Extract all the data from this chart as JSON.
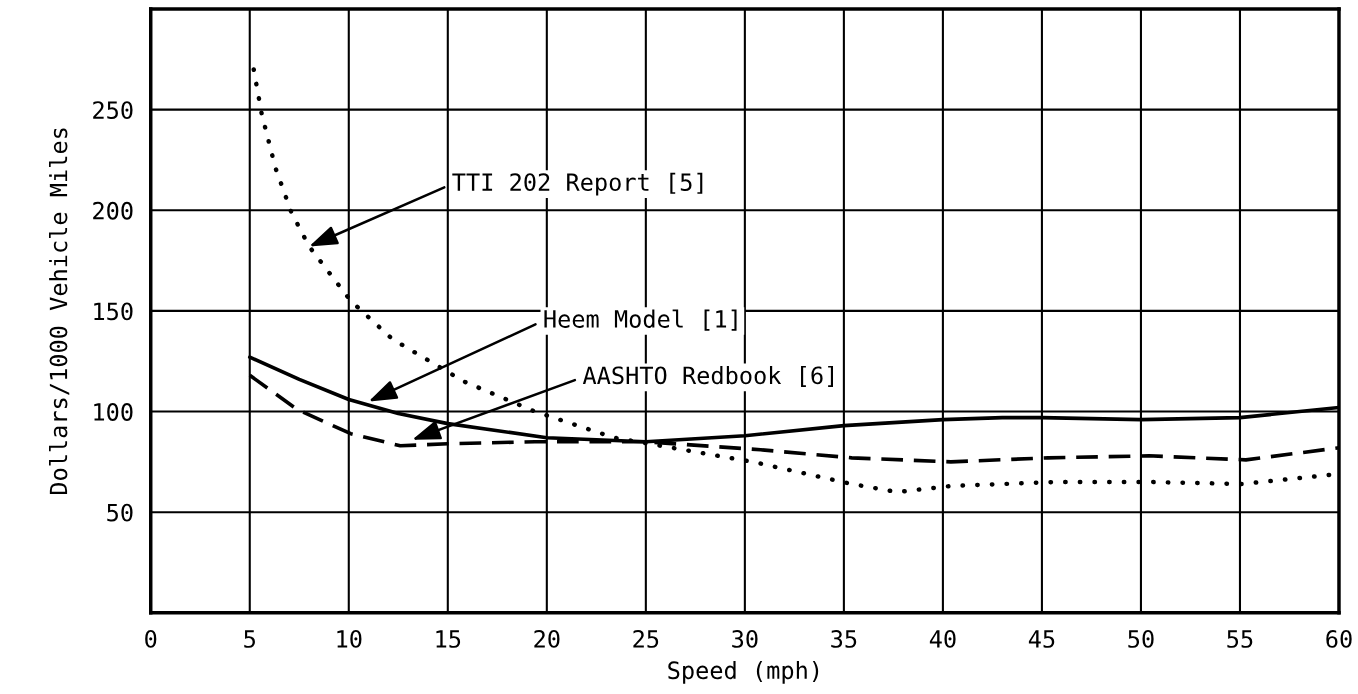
{
  "chart_data": {
    "type": "line",
    "xlabel": "Speed (mph)",
    "ylabel": "Dollars/1000 Vehicle Miles",
    "xlim": [
      0,
      60
    ],
    "xticks": [
      0,
      5,
      10,
      15,
      20,
      25,
      30,
      35,
      40,
      45,
      50,
      55,
      60
    ],
    "ylim": [
      0,
      300
    ],
    "yticks": [
      50,
      100,
      150,
      200,
      250
    ],
    "grid": true,
    "legend": false,
    "series": [
      {
        "color": "#000000",
        "line_style": "dotted",
        "x": [
          5.2,
          5.6,
          6.3,
          7.1,
          8,
          10.1,
          12.2,
          15.8,
          19.4,
          23.4,
          30.4,
          35.4,
          37.7,
          40.4,
          45.7,
          50.4,
          55.1,
          60
        ],
        "values": [
          270,
          248,
          221,
          199,
          182,
          155,
          136,
          115,
          100,
          87,
          75,
          64,
          60,
          63,
          65,
          65,
          64,
          69
        ]
      },
      {
        "color": "#000000",
        "line_style": "solid",
        "x": [
          5,
          7.5,
          10,
          12.5,
          15,
          20,
          25,
          30,
          35,
          40,
          43,
          45,
          50,
          55,
          60
        ],
        "values": [
          127,
          116,
          106,
          99,
          94,
          87,
          85,
          88,
          93,
          96,
          97,
          97,
          96,
          97,
          102
        ]
      },
      {
        "color": "#000000",
        "line_style": "dashed",
        "x": [
          5,
          7.4,
          10.1,
          12.6,
          15,
          19.4,
          25,
          30.8,
          35.4,
          40.4,
          45.3,
          50.4,
          55.3,
          60
        ],
        "values": [
          118,
          101,
          89,
          83,
          84,
          85,
          85,
          81,
          77,
          75,
          77,
          78,
          76,
          82
        ]
      }
    ],
    "annotations": [
      {
        "text": "TTI 202 Report [5]",
        "x": 8,
        "y": 182
      },
      {
        "text": "Heem Model [1]",
        "x": 11,
        "y": 105
      },
      {
        "text": "AASHTO Redbook [6]",
        "x": 13.2,
        "y": 86
      }
    ]
  }
}
